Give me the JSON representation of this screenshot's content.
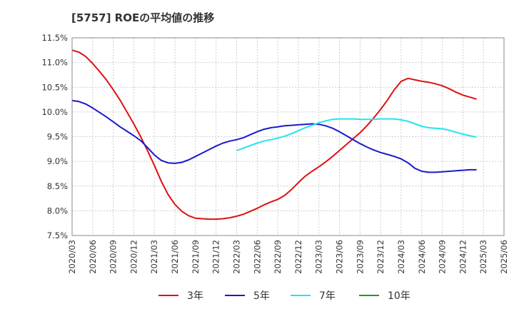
{
  "chart_data": {
    "type": "line",
    "title": "[5757]  ROEの平均値の推移",
    "xlabel": "",
    "ylabel": "",
    "ylim": [
      7.5,
      11.5
    ],
    "yticks": [
      "7.5%",
      "8.0%",
      "8.5%",
      "9.0%",
      "9.5%",
      "10.0%",
      "10.5%",
      "11.0%",
      "11.5%"
    ],
    "ytick_values": [
      7.5,
      8.0,
      8.5,
      9.0,
      9.5,
      10.0,
      10.5,
      11.0,
      11.5
    ],
    "xticks": [
      "2020/03",
      "2020/06",
      "2020/09",
      "2020/12",
      "2021/03",
      "2021/06",
      "2021/09",
      "2021/12",
      "2022/03",
      "2022/06",
      "2022/09",
      "2022/12",
      "2023/03",
      "2023/06",
      "2023/09",
      "2023/12",
      "2024/03",
      "2024/06",
      "2024/09",
      "2024/12",
      "2025/03",
      "2025/06"
    ],
    "legend_position": "bottom",
    "series": [
      {
        "name": "3年",
        "color": "#dd1111",
        "values": [
          11.25,
          11.21,
          11.12,
          10.98,
          10.82,
          10.65,
          10.45,
          10.24,
          10.0,
          9.76,
          9.5,
          9.22,
          8.92,
          8.6,
          8.33,
          8.13,
          7.99,
          7.9,
          7.85,
          7.84,
          7.83,
          7.83,
          7.84,
          7.86,
          7.89,
          7.93,
          7.99,
          8.05,
          8.12,
          8.18,
          8.23,
          8.31,
          8.43,
          8.57,
          8.7,
          8.8,
          8.89,
          8.99,
          9.1,
          9.22,
          9.34,
          9.46,
          9.58,
          9.72,
          9.88,
          10.05,
          10.24,
          10.45,
          10.62,
          10.68,
          10.65,
          10.62,
          10.6,
          10.57,
          10.53,
          10.47,
          10.4,
          10.34,
          10.3,
          10.26
        ]
      },
      {
        "name": "5年",
        "color": "#1a1acc",
        "values": [
          10.23,
          10.21,
          10.16,
          10.08,
          9.99,
          9.9,
          9.8,
          9.7,
          9.61,
          9.52,
          9.42,
          9.28,
          9.13,
          9.02,
          8.97,
          8.96,
          8.98,
          9.03,
          9.1,
          9.17,
          9.24,
          9.31,
          9.37,
          9.41,
          9.44,
          9.48,
          9.54,
          9.6,
          9.65,
          9.68,
          9.7,
          9.72,
          9.73,
          9.74,
          9.75,
          9.76,
          9.75,
          9.72,
          9.67,
          9.6,
          9.52,
          9.44,
          9.36,
          9.29,
          9.23,
          9.18,
          9.14,
          9.1,
          9.05,
          8.97,
          8.86,
          8.8,
          8.78,
          8.78,
          8.79,
          8.8,
          8.81,
          8.82,
          8.83,
          8.83
        ]
      },
      {
        "name": "7年",
        "color": "#22e5ee",
        "values": [
          null,
          null,
          null,
          null,
          null,
          null,
          null,
          null,
          null,
          null,
          null,
          null,
          null,
          null,
          null,
          null,
          null,
          null,
          null,
          null,
          null,
          null,
          null,
          null,
          9.22,
          9.27,
          9.32,
          9.37,
          9.41,
          9.44,
          9.47,
          9.51,
          9.56,
          9.62,
          9.68,
          9.73,
          9.78,
          9.82,
          9.85,
          9.86,
          9.86,
          9.86,
          9.85,
          9.85,
          9.85,
          9.86,
          9.86,
          9.86,
          9.84,
          9.81,
          9.76,
          9.71,
          9.68,
          9.67,
          9.66,
          9.63,
          9.59,
          9.55,
          9.52,
          9.49
        ]
      },
      {
        "name": "10年",
        "color": "#229922",
        "values": []
      }
    ]
  }
}
